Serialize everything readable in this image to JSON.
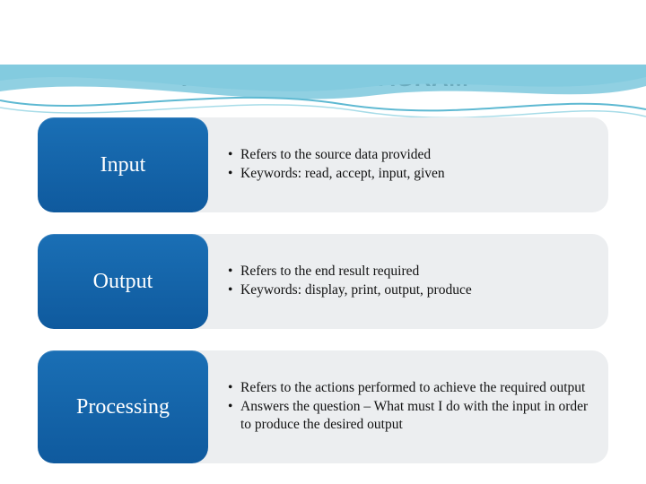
{
  "title": {
    "text": "THE DEFINING DIAGRAM",
    "fontsize": 26,
    "color": "#0a0a0a"
  },
  "wave": {
    "colors": [
      "#7dc8dd",
      "#a7dce8",
      "#5eb9d2"
    ],
    "background": "#ffffff"
  },
  "layout": {
    "row_gap": 24,
    "label_width": 190,
    "label_bg_top": "#1a6fb5",
    "label_bg_bottom": "#0f5a9e",
    "label_text_color": "#ffffff",
    "label_fontsize": 24,
    "content_bg": "#eceef0",
    "content_text_color": "#111111",
    "content_fontsize": 15.5,
    "border_radius": 18
  },
  "rows": [
    {
      "label": "Input",
      "bullets": [
        "Refers to the source data provided",
        "Keywords: read, accept, input, given"
      ]
    },
    {
      "label": "Output",
      "bullets": [
        "Refers to the end result required",
        "Keywords: display, print, output, produce"
      ]
    },
    {
      "label": "Processing",
      "bullets": [
        "Refers to the actions performed to achieve the required output",
        "Answers the question – What must I do with the input in order to produce the desired output"
      ]
    }
  ],
  "flourish_color": "#c9cfd4"
}
